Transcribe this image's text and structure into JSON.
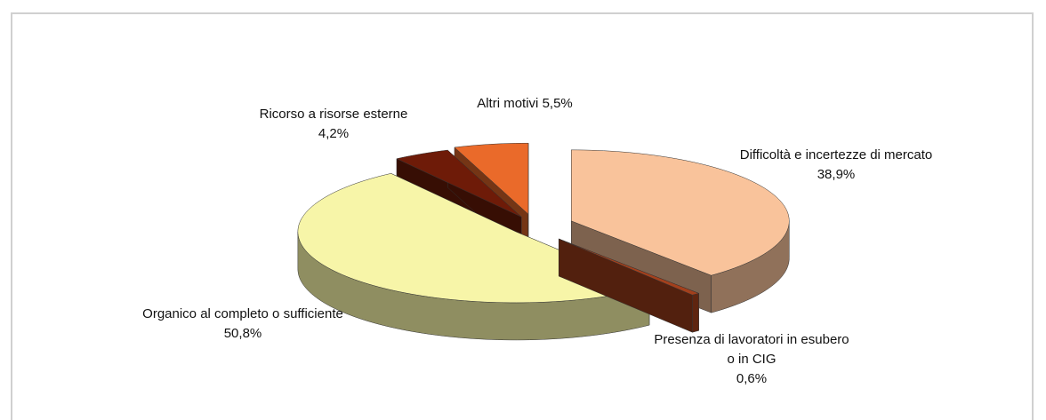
{
  "chart_data": {
    "type": "pie",
    "categories": [
      "Difficoltà e incertezze di mercato",
      "Presenza di lavoratori in esubero o in CIG",
      "Organico al completo o sufficiente",
      "Ricorso a risorse esterne",
      "Altri motivi"
    ],
    "values": [
      38.9,
      0.6,
      50.8,
      4.2,
      5.5
    ],
    "value_labels": [
      "38,9%",
      "0,6%",
      "50,8%",
      "4,2%",
      "5,5%"
    ],
    "colors": [
      "#f9c39b",
      "#a3401c",
      "#f7f5a8",
      "#6e1b08",
      "#ea6a2a"
    ]
  }
}
